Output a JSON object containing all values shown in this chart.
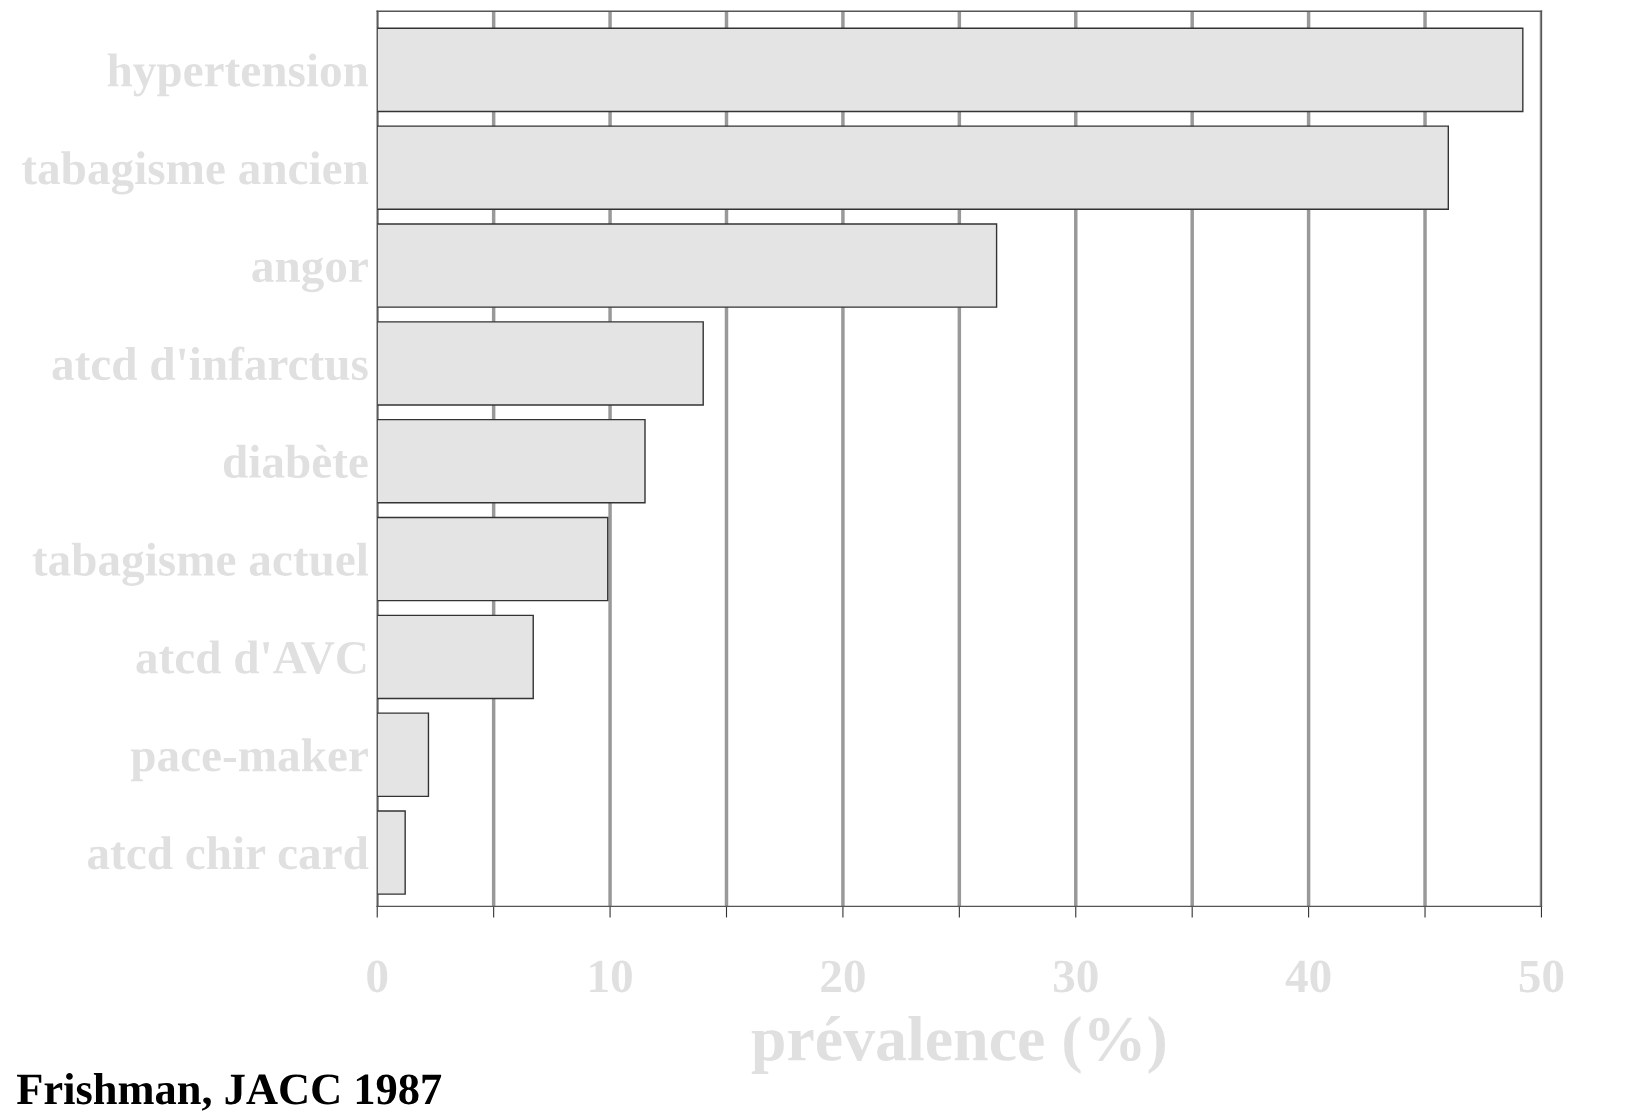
{
  "chart_data": {
    "type": "bar",
    "orientation": "horizontal",
    "xlabel": "prévalence (%)",
    "categories": [
      "hypertension",
      "tabagisme ancien",
      "angor",
      "atcd d'infarctus",
      "diabète",
      "tabagisme actuel",
      "atcd d'AVC",
      "pace-maker",
      "atcd chir card"
    ],
    "values": [
      49.2,
      46.0,
      26.6,
      14.0,
      11.5,
      9.9,
      6.7,
      2.2,
      1.2
    ],
    "color": "#e4e4e4",
    "xlim": [
      0,
      50
    ],
    "xticks": [
      0,
      {
        "value": 5,
        "label": null
      },
      10,
      {
        "value": 15,
        "label": null
      },
      20,
      {
        "value": 25,
        "label": null
      },
      30,
      {
        "value": 35,
        "label": null
      },
      40,
      {
        "value": 45,
        "label": null
      },
      50
    ],
    "grid": "x",
    "annotations": [
      "Frishman, JACC 1987"
    ]
  }
}
